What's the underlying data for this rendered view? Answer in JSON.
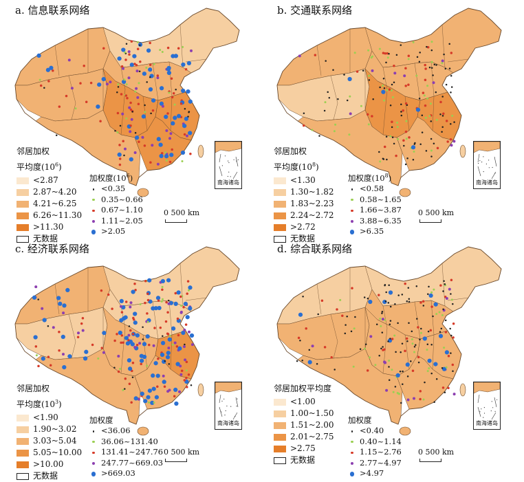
{
  "colors": {
    "fill_scale": [
      "#fbe8cf",
      "#f6cfa1",
      "#f1b273",
      "#eb9446",
      "#e57e2a"
    ],
    "border": "#6b4a2c",
    "dot_colors": [
      "#222222",
      "#9bcf52",
      "#d63a28",
      "#8c3fb0",
      "#2a6fd1"
    ]
  },
  "inset_label": "南海诸岛",
  "scale_label": "0   500 km",
  "panels": [
    {
      "title": "a. 信息联系网络",
      "legend_title_1": "邻居加权",
      "legend_title_2": "平均度(10",
      "legend_title_exp": "6",
      "legend_title_3": ")",
      "fill_classes": [
        "<2.87",
        "2.87~4.20",
        "4.21~6.25",
        "6.26~11.30",
        ">11.30"
      ],
      "no_data": "无数据",
      "dot_title": "加权度(10",
      "dot_title_exp": "6",
      "dot_title_3": ")",
      "dot_classes": [
        "<0.35",
        "0.35~0.66",
        "0.67~1.10",
        "1.11~2.05",
        ">2.05"
      ]
    },
    {
      "title": "b. 交通联系网络",
      "legend_title_1": "邻居加权",
      "legend_title_2": "平均度(10",
      "legend_title_exp": "8",
      "legend_title_3": ")",
      "fill_classes": [
        "<1.30",
        "1.30~1.82",
        "1.83~2.23",
        "2.24~2.72",
        ">2.72"
      ],
      "no_data": "无数据",
      "dot_title": "加权度(10",
      "dot_title_exp": "8",
      "dot_title_3": ")",
      "dot_classes": [
        "<0.58",
        "0.58~1.65",
        "1.66~3.87",
        "3.88~6.35",
        ">6.35"
      ]
    },
    {
      "title": "c. 经济联系网络",
      "legend_title_1": "邻居加权",
      "legend_title_2": "平均度(10",
      "legend_title_exp": "3",
      "legend_title_3": ")",
      "fill_classes": [
        "<1.90",
        "1.90~3.02",
        "3.03~5.04",
        "5.05~10.00",
        ">10.00"
      ],
      "no_data": "无数据",
      "dot_title": "加权度",
      "dot_title_exp": "",
      "dot_title_3": "",
      "dot_classes": [
        "<36.06",
        "36.06~131.40",
        "131.41~247.76",
        "247.77~669.03",
        ">669.03"
      ]
    },
    {
      "title": "d. 综合联系网络",
      "legend_title_1": "邻居加权平均度",
      "legend_title_2": "",
      "legend_title_exp": "",
      "legend_title_3": "",
      "fill_classes": [
        "<1.00",
        "1.00~1.50",
        "1.51~2.00",
        "2.01~2.75",
        ">2.75"
      ],
      "no_data": "无数据",
      "dot_title": "加权度",
      "dot_title_exp": "",
      "dot_title_3": "",
      "dot_classes": [
        "<0.40",
        "0.40~1.14",
        "1.15~2.76",
        "2.77~4.97",
        ">4.97"
      ]
    }
  ]
}
